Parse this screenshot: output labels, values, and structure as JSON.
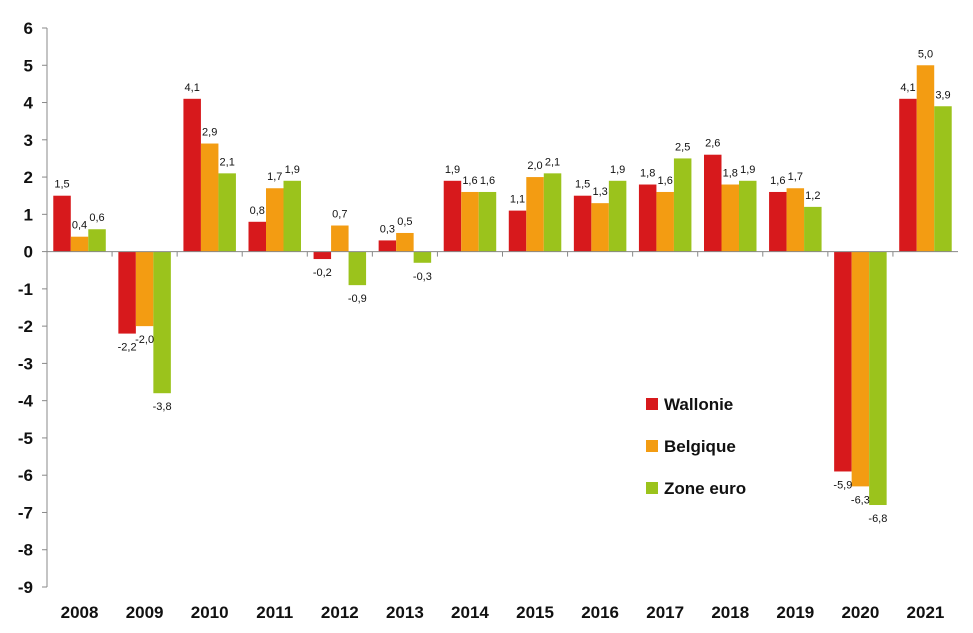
{
  "chart_data": {
    "type": "bar",
    "categories": [
      "2008",
      "2009",
      "2010",
      "2011",
      "2012",
      "2013",
      "2014",
      "2015",
      "2016",
      "2017",
      "2018",
      "2019",
      "2020",
      "2021"
    ],
    "series": [
      {
        "name": "Wallonie",
        "color": "#d7191c",
        "values": [
          1.5,
          -2.2,
          4.1,
          0.8,
          -0.2,
          0.3,
          1.9,
          1.1,
          1.5,
          1.8,
          2.6,
          1.6,
          -5.9,
          4.1
        ],
        "labels": [
          "1,5",
          "-2,2",
          "4,1",
          "0,8",
          "-0,2",
          "0,3",
          "1,9",
          "1,1",
          "1,5",
          "1,8",
          "2,6",
          "1,6",
          "-5,9",
          "4,1"
        ]
      },
      {
        "name": "Belgique",
        "color": "#f39c12",
        "values": [
          0.4,
          -2.0,
          2.9,
          1.7,
          0.7,
          0.5,
          1.6,
          2.0,
          1.3,
          1.6,
          1.8,
          1.7,
          -6.3,
          5.0
        ],
        "labels": [
          "0,4",
          "-2,0",
          "2,9",
          "1,7",
          "0,7",
          "0,5",
          "1,6",
          "2,0",
          "1,3",
          "1,6",
          "1,8",
          "1,7",
          "-6,3",
          "5,0"
        ]
      },
      {
        "name": "Zone euro",
        "color": "#9bc31c",
        "values": [
          0.6,
          -3.8,
          2.1,
          1.9,
          -0.9,
          -0.3,
          1.6,
          2.1,
          1.9,
          2.5,
          1.9,
          1.2,
          -6.8,
          3.9
        ],
        "labels": [
          "0,6",
          "-3,8",
          "2,1",
          "1,9",
          "-0,9",
          "-0,3",
          "1,6",
          "2,1",
          "1,9",
          "2,5",
          "1,9",
          "1,2",
          "-6,8",
          "3,9"
        ]
      }
    ],
    "ylim": [
      -9,
      6
    ],
    "yticks": [
      "6",
      "5",
      "4",
      "3",
      "2",
      "1",
      "0",
      "-1",
      "-2",
      "-3",
      "-4",
      "-5",
      "-6",
      "-7",
      "-8",
      "-9"
    ],
    "legend_position": "lower-right"
  }
}
